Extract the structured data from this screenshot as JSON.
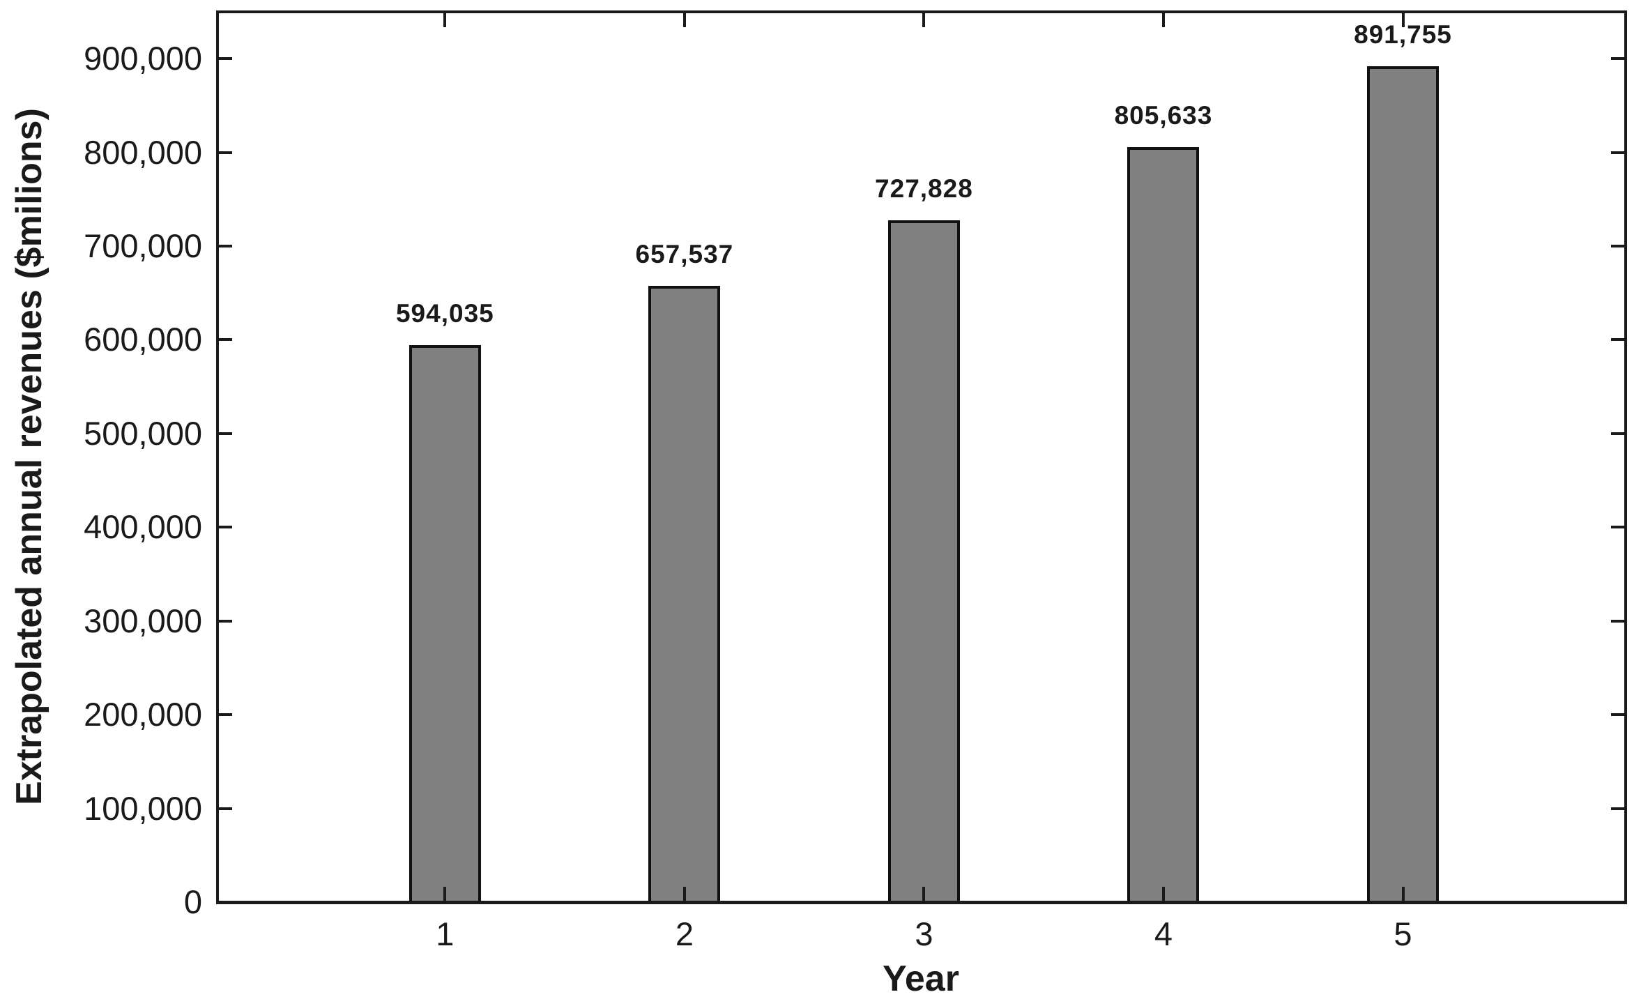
{
  "chart_data": {
    "type": "bar",
    "title": "",
    "xlabel": "Year",
    "ylabel": "Extrapolated annual revenues ($milions)",
    "categories": [
      "1",
      "2",
      "3",
      "4",
      "5"
    ],
    "series": [
      {
        "name": "Extrapolated annual revenues",
        "values": [
          594035,
          657537,
          727828,
          805633,
          891755
        ],
        "value_labels": [
          "594,035",
          "657,537",
          "727,828",
          "805,633",
          "891,755"
        ]
      }
    ],
    "ylim": [
      0,
      950000
    ],
    "ytick_interval": 100000,
    "ytick_values": [
      0,
      100000,
      200000,
      300000,
      400000,
      500000,
      600000,
      700000,
      800000,
      900000
    ],
    "ytick_labels": [
      "0",
      "100,000",
      "200,000",
      "300,000",
      "400,000",
      "500,000",
      "600,000",
      "700,000",
      "800,000",
      "900,000"
    ],
    "grid": false,
    "legend_position": "none",
    "colors": {
      "bar_fill": "#808080",
      "bar_border": "#111111",
      "axis": "#1a1a1a",
      "text": "#1a1a1a",
      "background": "#ffffff"
    }
  }
}
